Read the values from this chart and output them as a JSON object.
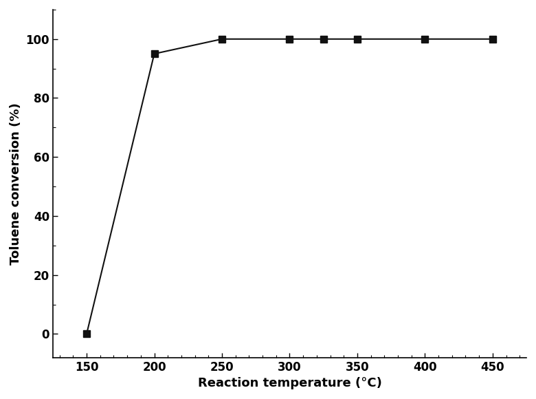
{
  "x": [
    150,
    200,
    250,
    300,
    325,
    350,
    400,
    450
  ],
  "y": [
    0,
    95,
    100,
    100,
    100,
    100,
    100,
    100
  ],
  "xlabel": "Reaction temperature (°C)",
  "ylabel": "Toluene conversion (%)",
  "xlim": [
    125,
    475
  ],
  "ylim": [
    -8,
    110
  ],
  "xticks": [
    150,
    200,
    250,
    300,
    350,
    400,
    450
  ],
  "yticks": [
    0,
    20,
    40,
    60,
    80,
    100
  ],
  "marker": "s",
  "marker_color": "#111111",
  "line_color": "#111111",
  "marker_size": 7,
  "line_width": 1.5,
  "xlabel_fontsize": 13,
  "ylabel_fontsize": 13,
  "tick_fontsize": 12,
  "background_color": "#ffffff"
}
